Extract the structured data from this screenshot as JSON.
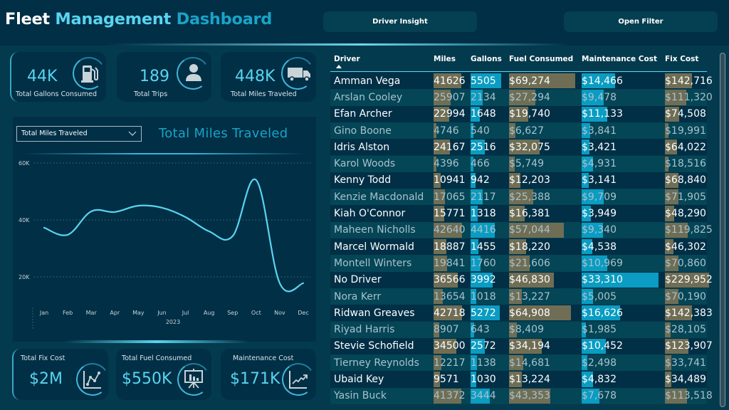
{
  "header": {
    "title_word1": "Fleet",
    "title_word2": "Management",
    "title_word3": "Dashboard",
    "buttons": {
      "driver_insight": "Driver Insight",
      "open_filter": "Open Filter"
    }
  },
  "kpis_top": [
    {
      "value": "44K",
      "label": "Total Gallons Consumed",
      "icon": "fuel-pump-icon"
    },
    {
      "value": "189",
      "label": "Total Trips",
      "icon": "person-icon"
    },
    {
      "value": "448K",
      "label": "Total Miles Traveled",
      "icon": "truck-icon"
    }
  ],
  "kpis_bottom": [
    {
      "value": "$2M",
      "label": "Total Fix Cost",
      "icon": "line-chart-icon"
    },
    {
      "value": "$550K",
      "label": "Total Fuel Consumed",
      "icon": "presentation-board-icon"
    },
    {
      "value": "$171K",
      "label": "Maintenance Cost",
      "icon": "trend-up-icon"
    }
  ],
  "chart_panel": {
    "dropdown_value": "Total Miles Traveled",
    "title": "Total Miles Traveled"
  },
  "chart_data": {
    "type": "line",
    "title": "Total Miles Traveled",
    "xlabel": "2023",
    "ylabel": "",
    "categories": [
      "Jan",
      "Feb",
      "Mar",
      "Apr",
      "May",
      "Jun",
      "Jul",
      "Aug",
      "Sep",
      "Oct",
      "Nov",
      "Dec"
    ],
    "series": [
      {
        "name": "Total Miles Traveled",
        "values": [
          37300,
          34800,
          43000,
          42800,
          45000,
          44300,
          41000,
          36000,
          34300,
          54000,
          17800,
          17800
        ]
      }
    ],
    "yticks": [
      20000,
      40000,
      60000
    ],
    "ytick_labels": [
      "20K",
      "40K",
      "60K"
    ],
    "ylim": [
      8000,
      60000
    ],
    "grid": true,
    "line_color": "#5ad4ef"
  },
  "table": {
    "columns": [
      "Driver",
      "Miles",
      "Gallons",
      "Fuel Consumed",
      "Maintenance Cost",
      "Fix Cost"
    ],
    "sort_column": "Driver",
    "sort_direction": "ascending",
    "rows": [
      [
        "Amman Vega",
        "41626",
        "5505",
        "$69,274",
        "$14,466",
        "$142,716"
      ],
      [
        "Arslan Cooley",
        "25907",
        "2134",
        "$27,294",
        "$9,478",
        "$111,320"
      ],
      [
        "Efan Archer",
        "22994",
        "1648",
        "$19,740",
        "$11,133",
        "$74,508"
      ],
      [
        "Gino Boone",
        "4746",
        "540",
        "$6,627",
        "$3,841",
        "$19,991"
      ],
      [
        "Idris Alston",
        "24167",
        "2516",
        "$32,075",
        "$3,421",
        "$64,022"
      ],
      [
        "Karol Woods",
        "4396",
        "466",
        "$5,749",
        "$4,931",
        "$18,516"
      ],
      [
        "Kenny Todd",
        "10941",
        "942",
        "$12,203",
        "$3,141",
        "$68,840"
      ],
      [
        "Kenzie Macdonald",
        "17065",
        "2117",
        "$25,388",
        "$9,709",
        "$71,905"
      ],
      [
        "Kiah O'Connor",
        "15771",
        "1318",
        "$16,381",
        "$3,949",
        "$48,290"
      ],
      [
        "Maheen Nicholls",
        "42640",
        "4416",
        "$57,044",
        "$9,340",
        "$119,825"
      ],
      [
        "Marcel Wormald",
        "18887",
        "1455",
        "$18,220",
        "$4,538",
        "$46,302"
      ],
      [
        "Montell Winters",
        "19841",
        "1760",
        "$21,606",
        "$10,969",
        "$70,860"
      ],
      [
        "No Driver",
        "36566",
        "3992",
        "$46,830",
        "$33,310",
        "$229,952"
      ],
      [
        "Nora Kerr",
        "13654",
        "1018",
        "$13,227",
        "$5,005",
        "$70,190"
      ],
      [
        "Ridwan Greaves",
        "42718",
        "5272",
        "$64,908",
        "$16,626",
        "$142,383"
      ],
      [
        "Riyad Harris",
        "8907",
        "643",
        "$8,409",
        "$1,985",
        "$28,105"
      ],
      [
        "Stevie Schofield",
        "34500",
        "2572",
        "$34,194",
        "$10,452",
        "$123,907"
      ],
      [
        "Tierney Reynolds",
        "12217",
        "1138",
        "$14,681",
        "$2,498",
        "$33,741"
      ],
      [
        "Ubaid Key",
        "9571",
        "1030",
        "$13,224",
        "$4,832",
        "$34,489"
      ],
      [
        "Yasin Buck",
        "41372",
        "3444",
        "$43,353",
        "$7,678",
        "$113,518"
      ]
    ],
    "data_bar_colors": {
      "miles": "#6f6e55",
      "gallons": "#0a9cc2",
      "fuel": "#6f6e55",
      "maintenance": "#0a9cc2",
      "fix": "#6f6e55"
    }
  },
  "colors": {
    "background": "#043a4d",
    "panel": "#002f46",
    "accent_light": "#5ad4ef",
    "accent_dark": "#1aa3c7"
  }
}
